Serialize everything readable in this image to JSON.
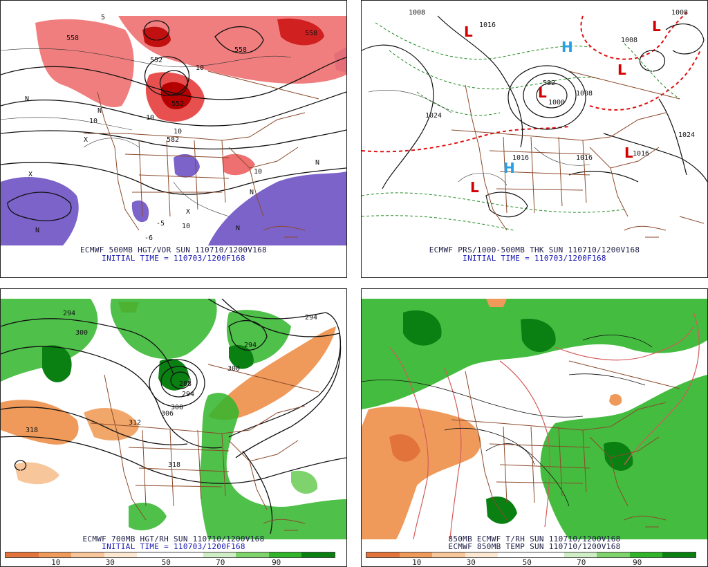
{
  "panels": {
    "p1": {
      "caption_line1": "ECMWF 500MB HGT/VOR SUN 110710/1200V168",
      "caption_line2": "INITIAL TIME = 110703/1200F168",
      "contour_labels": [
        "558",
        "552",
        "558",
        "558",
        "552",
        "5",
        "10",
        "10",
        "10",
        "10",
        "10",
        "10",
        "582",
        "N",
        "N",
        "N",
        "N",
        "N",
        "N",
        "X",
        "X",
        "X",
        "-6",
        "-5"
      ]
    },
    "p2": {
      "caption_line1": "ECMWF PRS/1000-500MB THK SUN 110710/1200V168",
      "caption_line2": "INITIAL TIME = 110703/1200F168",
      "isobar_labels": [
        "1008",
        "1016",
        "1008",
        "1008",
        "1024",
        "1000",
        "1008",
        "1024",
        "1016",
        "1016",
        "1016",
        "582"
      ],
      "pressure_centers": [
        {
          "type": "L",
          "color": "#d40000"
        },
        {
          "type": "L",
          "color": "#d40000"
        },
        {
          "type": "L",
          "color": "#d40000"
        },
        {
          "type": "L",
          "color": "#d40000"
        },
        {
          "type": "L",
          "color": "#d40000"
        },
        {
          "type": "L",
          "color": "#d40000"
        },
        {
          "type": "H",
          "color": "#27a0e6"
        },
        {
          "type": "H",
          "color": "#27a0e6"
        }
      ]
    },
    "p3": {
      "caption_line1": "ECMWF 700MB HGT/RH SUN 110710/1200V168",
      "caption_line2": "INITIAL TIME = 110703/1200F168",
      "contour_labels": [
        "294",
        "300",
        "318",
        "312",
        "318",
        "288",
        "294",
        "300",
        "306",
        "300",
        "294",
        "294"
      ],
      "colorbar": {
        "colors": [
          "#e2733a",
          "#ef9a5a",
          "#f7c79b",
          "#fde9d2",
          "#ffffff",
          "#ffffff",
          "#cfeec6",
          "#7ed36c",
          "#30b52a",
          "#0a7f12"
        ],
        "ticks": [
          "10",
          "30",
          "50",
          "70",
          "90"
        ]
      }
    },
    "p4": {
      "caption_line1": "850MB ECMWF T/RH SUN 110710/1200V168",
      "caption_line2": "ECMWF 850MB TEMP SUN 110710/1200V168",
      "colorbar": {
        "colors": [
          "#e2733a",
          "#ef9a5a",
          "#f7c79b",
          "#fde9d2",
          "#ffffff",
          "#ffffff",
          "#cfeec6",
          "#7ed36c",
          "#30b52a",
          "#0a7f12"
        ],
        "ticks": [
          "10",
          "30",
          "50",
          "70",
          "90"
        ]
      }
    }
  },
  "colors": {
    "border_lines": "#8b4a2b",
    "vorticity_positive": "#e85c5c",
    "vorticity_strong": "#c40000",
    "vorticity_negative": "#7b63c9",
    "thickness_red": "#e01010",
    "thickness_green": "#1f8a1f",
    "rh_moist": "#30b52a",
    "rh_dry": "#ef9a5a"
  }
}
